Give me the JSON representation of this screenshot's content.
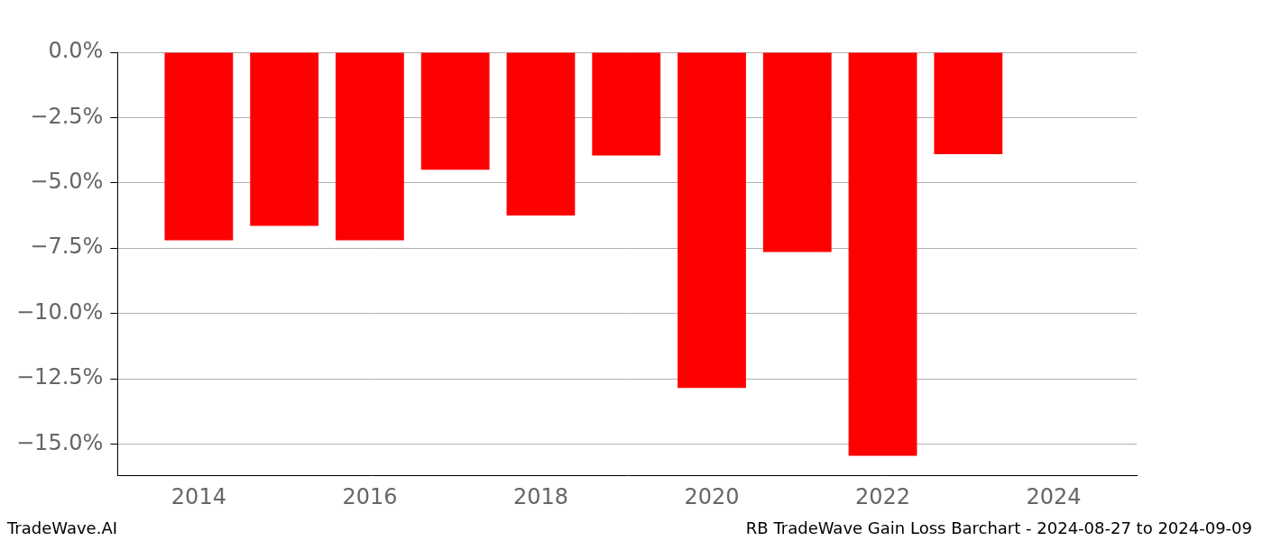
{
  "chart_data": {
    "type": "bar",
    "title": "RB TradeWave Gain Loss Barchart - 2024-08-27 to 2024-09-09",
    "annotations": [
      "TradeWave.AI"
    ],
    "x": [
      2014,
      2015,
      2016,
      2017,
      2018,
      2019,
      2020,
      2021,
      2022,
      2023
    ],
    "values": [
      -7.2,
      -6.65,
      -7.2,
      -4.5,
      -6.25,
      -3.95,
      -12.85,
      -7.65,
      -15.45,
      -3.9
    ],
    "color": "#ff0000",
    "xlim": [
      2013.05,
      2024.97
    ],
    "xticks": [
      2014,
      2016,
      2018,
      2020,
      2022,
      2024
    ],
    "ylim": [
      -16.2,
      0
    ],
    "yticks": [
      {
        "value": 0,
        "label": "0.0%"
      },
      {
        "value": -2.5,
        "label": "−2.5%"
      },
      {
        "value": -5,
        "label": "−5.0%"
      },
      {
        "value": -7.5,
        "label": "−7.5%"
      },
      {
        "value": -10,
        "label": "−10.0%"
      },
      {
        "value": -12.5,
        "label": "−12.5%"
      },
      {
        "value": -15,
        "label": "−15.0%"
      }
    ],
    "grid": true
  }
}
